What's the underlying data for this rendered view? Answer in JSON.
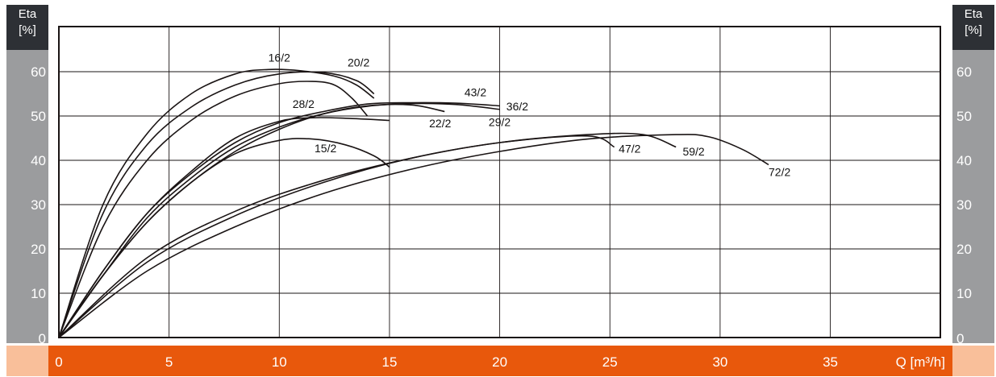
{
  "chart_data": {
    "type": "line",
    "ylabel": "Eta",
    "yunit": "[%]",
    "xlabel": "Q [m³/h]",
    "xlim": [
      0,
      40
    ],
    "ylim": [
      0,
      60
    ],
    "xticks": [
      "0",
      "5",
      "10",
      "15",
      "20",
      "25",
      "30",
      "35"
    ],
    "yticks": [
      "0",
      "10",
      "20",
      "30",
      "40",
      "50",
      "60"
    ],
    "grid": true,
    "series": [
      {
        "name": "16/2",
        "x": [
          0,
          2,
          4,
          6,
          8,
          9.5,
          11,
          12.5,
          13.5,
          14.3
        ],
        "y": [
          0,
          30,
          46,
          55,
          59.5,
          60.5,
          60.2,
          59,
          57,
          54
        ]
      },
      {
        "name": "20/2",
        "x": [
          0,
          2,
          4,
          6,
          8,
          10,
          12,
          13.5,
          14.3
        ],
        "y": [
          0,
          28,
          43.5,
          52,
          57,
          59.5,
          59.8,
          58,
          55
        ]
      },
      {
        "name": "28/2",
        "x": [
          0,
          2,
          4,
          6,
          8,
          10,
          11.5,
          12.5,
          13.3,
          14
        ],
        "y": [
          0,
          25,
          40,
          49,
          54.5,
          57.3,
          57.8,
          57,
          54,
          50
        ]
      },
      {
        "name": "43/2",
        "x": [
          0,
          2,
          4,
          6,
          8,
          10,
          12,
          14,
          16,
          18,
          20
        ],
        "y": [
          0,
          15,
          28,
          37,
          44,
          48.5,
          51,
          52.7,
          53,
          52.9,
          52.3
        ]
      },
      {
        "name": "36/2",
        "x": [
          0,
          2,
          4,
          6,
          8,
          10,
          12,
          14,
          16,
          18,
          20
        ],
        "y": [
          0,
          14,
          27,
          36,
          43,
          47.5,
          50.5,
          52.2,
          52.8,
          52.6,
          51.5
        ]
      },
      {
        "name": "29/2",
        "x": [
          0,
          2,
          4,
          6,
          8,
          10,
          12,
          14,
          16,
          17.5
        ],
        "y": [
          0,
          14,
          26,
          35,
          42,
          47,
          50.5,
          52.3,
          52.5,
          51
        ]
      },
      {
        "name": "22/2",
        "x": [
          0,
          2,
          4,
          6,
          8,
          10,
          11.5,
          13,
          15
        ],
        "y": [
          0,
          15,
          28,
          37.5,
          45,
          48.8,
          49.6,
          49.5,
          49
        ]
      },
      {
        "name": "15/2",
        "x": [
          0,
          2,
          4,
          6,
          8,
          10,
          11.5,
          13,
          14.3,
          15
        ],
        "y": [
          0,
          14,
          26,
          35,
          41.5,
          44.5,
          44.8,
          43.5,
          41,
          38.5
        ]
      },
      {
        "name": "47/2",
        "x": [
          0,
          4,
          8,
          12,
          16,
          20,
          24,
          25.2
        ],
        "y": [
          0,
          18,
          28.5,
          35.5,
          40.5,
          44,
          45.5,
          43
        ]
      },
      {
        "name": "59/2",
        "x": [
          0,
          4,
          8,
          12,
          16,
          20,
          24,
          26.5,
          28
        ],
        "y": [
          0,
          17,
          27.5,
          35,
          40.5,
          44,
          45.8,
          45.8,
          43
        ]
      },
      {
        "name": "72/2",
        "x": [
          0,
          4,
          8,
          12,
          16,
          20,
          24,
          28,
          29.5,
          31,
          32.2
        ],
        "y": [
          0,
          15,
          25,
          32.5,
          38,
          42,
          44.8,
          45.8,
          45.3,
          42.5,
          39
        ]
      }
    ],
    "curve_labels": [
      {
        "name": "16/2",
        "x": 9.5,
        "y": 62.3
      },
      {
        "name": "20/2",
        "x": 13.1,
        "y": 61.2
      },
      {
        "name": "28/2",
        "x": 10.6,
        "y": 51.8
      },
      {
        "name": "43/2",
        "x": 18.4,
        "y": 54.5
      },
      {
        "name": "36/2",
        "x": 20.3,
        "y": 51.3
      },
      {
        "name": "22/2",
        "x": 16.8,
        "y": 47.5
      },
      {
        "name": "29/2",
        "x": 19.5,
        "y": 47.7
      },
      {
        "name": "15/2",
        "x": 11.6,
        "y": 41.8
      },
      {
        "name": "47/2",
        "x": 25.4,
        "y": 41.7
      },
      {
        "name": "59/2",
        "x": 28.3,
        "y": 41.1
      },
      {
        "name": "72/2",
        "x": 32.2,
        "y": 36.5
      }
    ]
  },
  "ui": {
    "unit_left_1": "Eta",
    "unit_left_2": "[%]",
    "unit_right_1": "Eta",
    "unit_right_2": "[%]",
    "colors": {
      "axis_band": "#9b9c9e",
      "unit_box": "#2d3035",
      "x_band": "#e8580c",
      "x_band_light": "#f9bf9a",
      "curve": "#1a1414",
      "grid": "#1a1414"
    }
  }
}
